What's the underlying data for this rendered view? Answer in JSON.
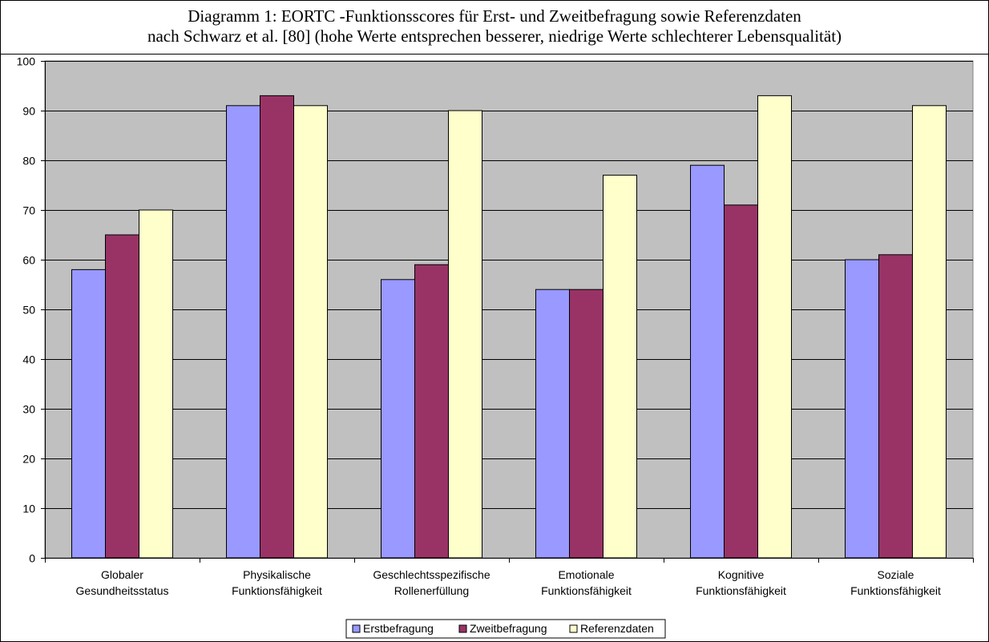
{
  "chart_data": {
    "type": "bar",
    "title": "Diagramm 1: EORTC -Funktionsscores für Erst- und Zweitbefragung sowie Referenzdaten",
    "subtitle": "nach Schwarz et al. [80]  (hohe Werte entsprechen besserer, niedrige Werte schlechterer Lebensqualität)",
    "categories": [
      [
        "Globaler",
        "Gesundheitsstatus"
      ],
      [
        "Physikalische",
        "Funktionsfähigkeit"
      ],
      [
        "Geschlechtsspezifische",
        "Rollenerfüllung"
      ],
      [
        "Emotionale",
        "Funktionsfähigkeit"
      ],
      [
        "Kognitive",
        "Funktionsfähigkeit"
      ],
      [
        "Soziale",
        "Funktionsfähigkeit"
      ]
    ],
    "series": [
      {
        "name": "Erstbefragung",
        "color": "#9999ff",
        "values": [
          58,
          91,
          56,
          54,
          79,
          60
        ]
      },
      {
        "name": "Zweitbefragung",
        "color": "#993366",
        "values": [
          65,
          93,
          59,
          54,
          71,
          61
        ]
      },
      {
        "name": "Referenzdaten",
        "color": "#ffffcc",
        "values": [
          70,
          91,
          90,
          77,
          93,
          91
        ]
      }
    ],
    "ylim": [
      0,
      100
    ],
    "yticks": [
      0,
      10,
      20,
      30,
      40,
      50,
      60,
      70,
      80,
      90,
      100
    ],
    "plot_background": "#c0c0c0",
    "grid": true,
    "legend_position": "bottom"
  }
}
